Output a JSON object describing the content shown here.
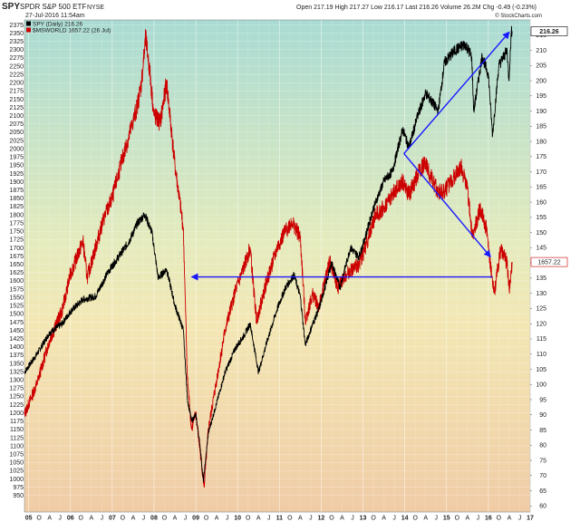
{
  "header": {
    "symbol": "SPY",
    "name": "SPDR S&P 500 ETF",
    "exchange": "NYSE",
    "date": "27-Jul-2016 11:54am",
    "quote": "Open 217.19   High 217.27   Low 216.17   Last 216.26   Volume 26.2M   Chg -0.49 (-0.23%)",
    "watermark": "© StockCharts.com"
  },
  "legend": {
    "series1": "SPY (Daily) 216.26",
    "series2": "$MSWORLD 1657.22 (26 Jul)",
    "series1_color": "#000000",
    "series2_color": "#cc0000"
  },
  "badges": {
    "right": "216.26",
    "right_mid": "1657.22"
  },
  "chart_data": {
    "type": "line",
    "x_ticks": [
      "05",
      "O",
      "A",
      "J",
      "06",
      "O",
      "A",
      "J",
      "07",
      "O",
      "A",
      "J",
      "08",
      "O",
      "A",
      "J",
      "09",
      "O",
      "A",
      "J",
      "10",
      "O",
      "A",
      "J",
      "11",
      "O",
      "A",
      "J",
      "12",
      "O",
      "A",
      "J",
      "13",
      "O",
      "A",
      "J",
      "14",
      "O",
      "A",
      "J",
      "15",
      "O",
      "A",
      "J",
      "16",
      "O",
      "A",
      "J",
      "17"
    ],
    "x_range": [
      2004.9,
      2017.0
    ],
    "left_axis": {
      "range": [
        900,
        2390
      ],
      "ticks": [
        950,
        975,
        1000,
        1025,
        1050,
        1075,
        1100,
        1125,
        1150,
        1175,
        1200,
        1225,
        1250,
        1275,
        1300,
        1325,
        1350,
        1375,
        1400,
        1425,
        1450,
        1475,
        1500,
        1525,
        1550,
        1575,
        1600,
        1625,
        1650,
        1675,
        1700,
        1725,
        1750,
        1775,
        1800,
        1825,
        1850,
        1875,
        1900,
        1925,
        1950,
        1975,
        2000,
        2025,
        2050,
        2075,
        2100,
        2125,
        2150,
        2175,
        2200,
        2225,
        2250,
        2275,
        2300,
        2325,
        2350,
        2375
      ]
    },
    "right_axis": {
      "range": [
        58,
        220
      ],
      "ticks": [
        60,
        65,
        70,
        75,
        80,
        85,
        90,
        95,
        100,
        105,
        110,
        115,
        120,
        125,
        130,
        135,
        140,
        145,
        150,
        155,
        160,
        165,
        170,
        175,
        180,
        185,
        190,
        195,
        200,
        205,
        210,
        215
      ]
    },
    "series": [
      {
        "name": "SPY (Daily)",
        "axis": "right",
        "color": "#000000",
        "points": [
          [
            2004.9,
            104
          ],
          [
            2005.2,
            110
          ],
          [
            2005.5,
            117
          ],
          [
            2005.8,
            120
          ],
          [
            2006.0,
            124
          ],
          [
            2006.3,
            128
          ],
          [
            2006.6,
            129
          ],
          [
            2006.9,
            137
          ],
          [
            2007.1,
            141
          ],
          [
            2007.4,
            147
          ],
          [
            2007.6,
            153
          ],
          [
            2007.78,
            156
          ],
          [
            2007.95,
            150
          ],
          [
            2008.1,
            135
          ],
          [
            2008.3,
            138
          ],
          [
            2008.5,
            126
          ],
          [
            2008.7,
            118
          ],
          [
            2008.8,
            95
          ],
          [
            2008.9,
            88
          ],
          [
            2009.0,
            90
          ],
          [
            2009.1,
            80
          ],
          [
            2009.18,
            68
          ],
          [
            2009.3,
            84
          ],
          [
            2009.5,
            94
          ],
          [
            2009.7,
            104
          ],
          [
            2009.95,
            112
          ],
          [
            2010.15,
            116
          ],
          [
            2010.3,
            120
          ],
          [
            2010.5,
            104
          ],
          [
            2010.7,
            114
          ],
          [
            2010.95,
            125
          ],
          [
            2011.15,
            132
          ],
          [
            2011.35,
            136
          ],
          [
            2011.5,
            129
          ],
          [
            2011.62,
            113
          ],
          [
            2011.8,
            120
          ],
          [
            2011.95,
            125
          ],
          [
            2012.25,
            140
          ],
          [
            2012.45,
            132
          ],
          [
            2012.7,
            145
          ],
          [
            2012.9,
            142
          ],
          [
            2013.0,
            146
          ],
          [
            2013.25,
            158
          ],
          [
            2013.5,
            167
          ],
          [
            2013.7,
            170
          ],
          [
            2013.95,
            184
          ],
          [
            2014.1,
            178
          ],
          [
            2014.3,
            188
          ],
          [
            2014.5,
            196
          ],
          [
            2014.8,
            190
          ],
          [
            2014.95,
            206
          ],
          [
            2015.2,
            210
          ],
          [
            2015.45,
            212
          ],
          [
            2015.6,
            208
          ],
          [
            2015.65,
            190
          ],
          [
            2015.85,
            208
          ],
          [
            2016.0,
            202
          ],
          [
            2016.1,
            182
          ],
          [
            2016.25,
            205
          ],
          [
            2016.45,
            210
          ],
          [
            2016.49,
            200
          ],
          [
            2016.55,
            216
          ],
          [
            2016.57,
            216.26
          ]
        ]
      },
      {
        "name": "$MSWORLD",
        "axis": "left",
        "color": "#cc0000",
        "points": [
          [
            2004.9,
            1195
          ],
          [
            2005.2,
            1290
          ],
          [
            2005.5,
            1420
          ],
          [
            2005.8,
            1510
          ],
          [
            2006.0,
            1620
          ],
          [
            2006.3,
            1720
          ],
          [
            2006.4,
            1610
          ],
          [
            2006.6,
            1700
          ],
          [
            2006.8,
            1790
          ],
          [
            2007.0,
            1850
          ],
          [
            2007.2,
            1950
          ],
          [
            2007.45,
            2060
          ],
          [
            2007.6,
            2130
          ],
          [
            2007.7,
            2200
          ],
          [
            2007.8,
            2335
          ],
          [
            2007.9,
            2230
          ],
          [
            2008.0,
            2100
          ],
          [
            2008.15,
            2080
          ],
          [
            2008.3,
            2200
          ],
          [
            2008.5,
            1950
          ],
          [
            2008.7,
            1760
          ],
          [
            2008.8,
            1300
          ],
          [
            2008.9,
            1150
          ],
          [
            2009.0,
            1200
          ],
          [
            2009.2,
            975
          ],
          [
            2009.3,
            1150
          ],
          [
            2009.5,
            1300
          ],
          [
            2009.7,
            1450
          ],
          [
            2009.95,
            1570
          ],
          [
            2010.15,
            1640
          ],
          [
            2010.3,
            1700
          ],
          [
            2010.45,
            1480
          ],
          [
            2010.7,
            1600
          ],
          [
            2010.95,
            1700
          ],
          [
            2011.1,
            1740
          ],
          [
            2011.3,
            1780
          ],
          [
            2011.5,
            1730
          ],
          [
            2011.62,
            1480
          ],
          [
            2011.8,
            1560
          ],
          [
            2011.95,
            1520
          ],
          [
            2012.2,
            1660
          ],
          [
            2012.4,
            1580
          ],
          [
            2012.6,
            1620
          ],
          [
            2012.9,
            1650
          ],
          [
            2013.0,
            1680
          ],
          [
            2013.3,
            1800
          ],
          [
            2013.5,
            1820
          ],
          [
            2013.7,
            1860
          ],
          [
            2013.95,
            1900
          ],
          [
            2014.1,
            1860
          ],
          [
            2014.3,
            1920
          ],
          [
            2014.5,
            1960
          ],
          [
            2014.6,
            1920
          ],
          [
            2014.8,
            1870
          ],
          [
            2014.95,
            1870
          ],
          [
            2015.1,
            1900
          ],
          [
            2015.35,
            1945
          ],
          [
            2015.5,
            1880
          ],
          [
            2015.62,
            1730
          ],
          [
            2015.8,
            1820
          ],
          [
            2015.95,
            1760
          ],
          [
            2016.05,
            1640
          ],
          [
            2016.15,
            1570
          ],
          [
            2016.3,
            1700
          ],
          [
            2016.45,
            1650
          ],
          [
            2016.5,
            1570
          ],
          [
            2016.57,
            1657
          ]
        ]
      }
    ],
    "annotations": [
      {
        "type": "arrow",
        "axis": "left",
        "from": [
          2016.1,
          1612
        ],
        "to": [
          2008.9,
          1612
        ],
        "color": "#1a1aff"
      },
      {
        "type": "arrow",
        "axis": "right",
        "from": [
          2013.98,
          176
        ],
        "to": [
          2016.5,
          216
        ],
        "color": "#1a1aff"
      },
      {
        "type": "arrow",
        "axis": "right",
        "from": [
          2013.98,
          176
        ],
        "to": [
          2016.05,
          142
        ],
        "color": "#1a1aff"
      }
    ]
  }
}
